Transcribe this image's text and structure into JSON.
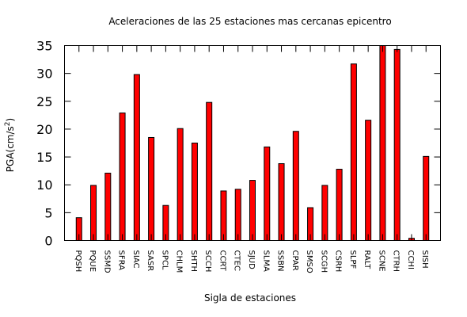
{
  "chart_data": {
    "type": "bar",
    "title": "Aceleraciones de las 25 estaciones mas cercanas epicentro",
    "xlabel": "Sigla de estaciones",
    "ylabel": "PGA(cm/s",
    "ylabel_superscript": "2",
    "ylabel_suffix": ")",
    "ylim": [
      0,
      35
    ],
    "yticks": [
      "0",
      "5",
      "10",
      "15",
      "20",
      "25",
      "30",
      "35"
    ],
    "grid": false,
    "legend": "none",
    "bar_color": "#ff0000",
    "categories": [
      "PQSH",
      "PQUE",
      "SSMD",
      "SFRA",
      "SIAC",
      "SASR",
      "SPCL",
      "CHLM",
      "SHTH",
      "SCCH",
      "CCRT",
      "CTEC",
      "SJUD",
      "SLMA",
      "SSBN",
      "CPAR",
      "SMSO",
      "SCGH",
      "CSRH",
      "SLPF",
      "RALT",
      "SCNE",
      "CTRH",
      "CCHI",
      "SISH"
    ],
    "values": [
      4.1,
      9.9,
      12.1,
      22.9,
      29.8,
      18.5,
      6.3,
      20.1,
      17.5,
      24.8,
      8.9,
      9.2,
      10.8,
      16.8,
      13.8,
      19.6,
      5.9,
      9.9,
      12.8,
      31.7,
      21.6,
      35.0,
      34.3,
      0.4,
      15.1
    ]
  }
}
